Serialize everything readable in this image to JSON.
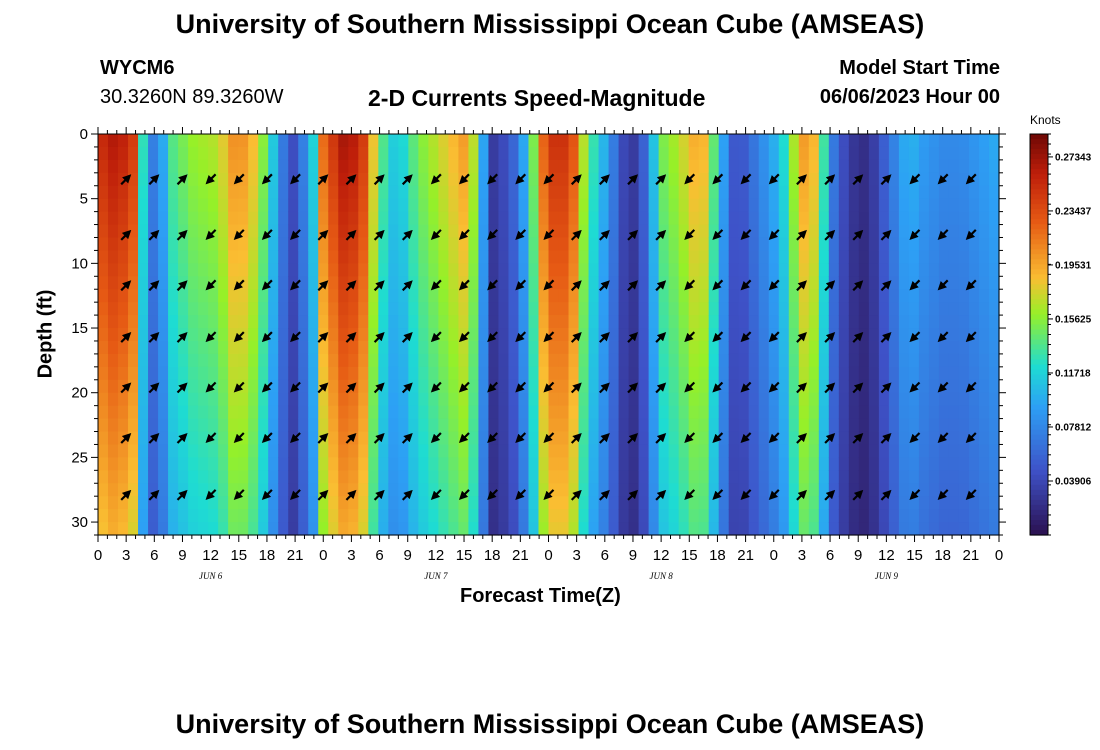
{
  "title": "University of Southern Mississippi Ocean Cube (AMSEAS)",
  "station": "WYCM6",
  "coordinates": "30.3260N  89.3260W",
  "subtitle": "2-D Currents Speed-Magnitude",
  "model_start_label": "Model Start Time",
  "model_start_value": "06/06/2023 Hour 00",
  "colorbar_unit": "Knots",
  "chart_data": {
    "type": "heatmap",
    "title": "2-D Currents Speed-Magnitude",
    "xlabel": "Forecast Time(Z)",
    "ylabel": "Depth (ft)",
    "xlim": [
      0,
      96
    ],
    "ylim": [
      31,
      0
    ],
    "y_ticks": [
      0,
      5,
      10,
      15,
      20,
      25,
      30
    ],
    "x_ticks": [
      0,
      3,
      6,
      9,
      12,
      15,
      18,
      21,
      24,
      27,
      30,
      33,
      36,
      39,
      42,
      45,
      48,
      51,
      54,
      57,
      60,
      63,
      66,
      69,
      72,
      75,
      78,
      81,
      84,
      87,
      90,
      93,
      96
    ],
    "x_tick_labels": [
      "0",
      "3",
      "6",
      "9",
      "12",
      "15",
      "18",
      "21",
      "0",
      "3",
      "6",
      "9",
      "12",
      "15",
      "18",
      "21",
      "0",
      "3",
      "6",
      "9",
      "12",
      "15",
      "18",
      "21",
      "0",
      "3",
      "6",
      "9",
      "12",
      "15",
      "18",
      "21",
      "0"
    ],
    "day_labels": [
      {
        "hour": 12,
        "label": "JUN 6"
      },
      {
        "hour": 36,
        "label": "JUN 7"
      },
      {
        "hour": 60,
        "label": "JUN 8"
      },
      {
        "hour": 84,
        "label": "JUN 9"
      }
    ],
    "colorbar": {
      "label": "Knots",
      "min": 0.0,
      "max": 0.29,
      "ticks": [
        "0.27343",
        "0.23437",
        "0.19531",
        "0.15625",
        "0.11718",
        "0.07812",
        "0.03906"
      ]
    },
    "speed_profile_hours": [
      0,
      2,
      4,
      5,
      6,
      7,
      8,
      10,
      13,
      14,
      15,
      17,
      19,
      20,
      21,
      23,
      24,
      26,
      28,
      29,
      30,
      31,
      32,
      34,
      36,
      38,
      39,
      40,
      41,
      42,
      44,
      46,
      47,
      48,
      50,
      51,
      52,
      54,
      56,
      57,
      58,
      59,
      60,
      62,
      64,
      65,
      66,
      67,
      68,
      70,
      72,
      73,
      74,
      75,
      76,
      77,
      78,
      80,
      82,
      84,
      86,
      87,
      88,
      90,
      92,
      94,
      96
    ],
    "speed_profile_knots": [
      0.25,
      0.27,
      0.24,
      0.1,
      0.07,
      0.1,
      0.14,
      0.16,
      0.17,
      0.2,
      0.21,
      0.18,
      0.1,
      0.06,
      0.04,
      0.12,
      0.22,
      0.27,
      0.26,
      0.2,
      0.15,
      0.12,
      0.11,
      0.15,
      0.17,
      0.19,
      0.2,
      0.17,
      0.1,
      0.03,
      0.05,
      0.12,
      0.2,
      0.25,
      0.25,
      0.22,
      0.15,
      0.1,
      0.04,
      0.03,
      0.05,
      0.1,
      0.15,
      0.17,
      0.2,
      0.18,
      0.12,
      0.08,
      0.04,
      0.07,
      0.1,
      0.12,
      0.16,
      0.2,
      0.2,
      0.16,
      0.08,
      0.03,
      0.02,
      0.06,
      0.1,
      0.1,
      0.09,
      0.08,
      0.08,
      0.09,
      0.1
    ],
    "vectors_depth_ft": [
      3.5,
      7.8,
      11.7,
      15.7,
      19.6,
      23.5,
      27.9
    ],
    "vectors_hour_interval": 3
  }
}
